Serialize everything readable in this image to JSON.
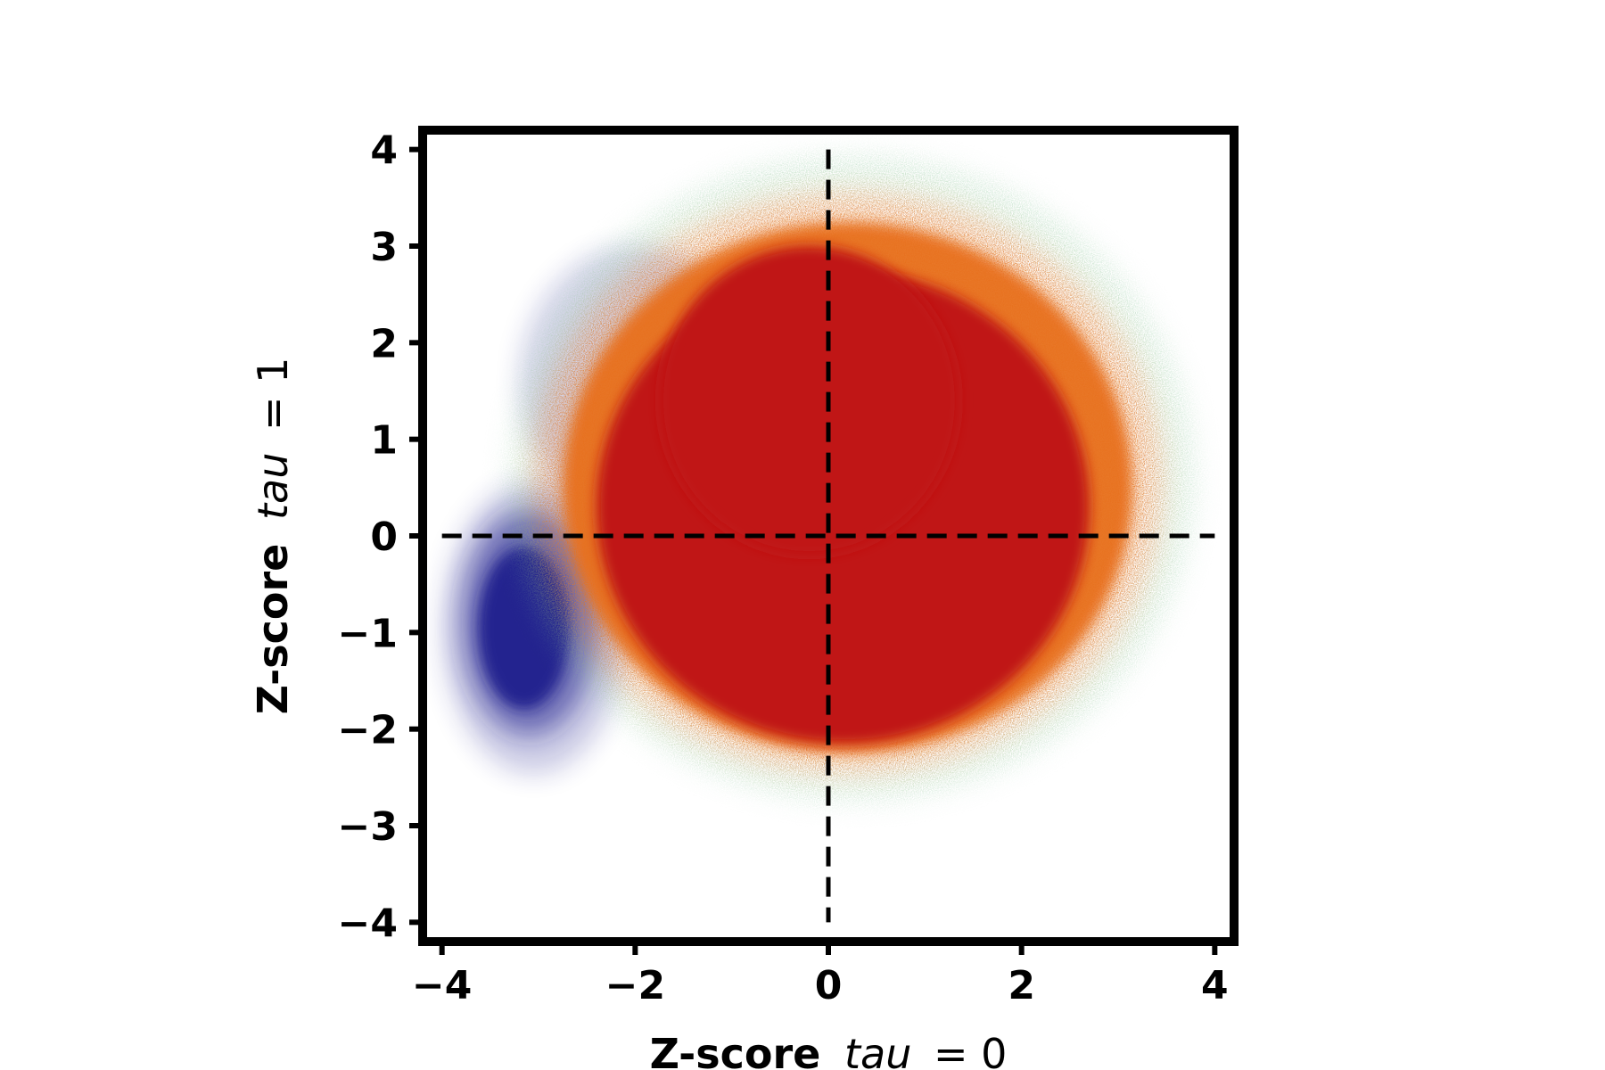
{
  "chart_data": {
    "type": "scatter",
    "title": "",
    "xlabel": {
      "prefix": "Z-score",
      "variable": "tau",
      "equals": "= 0"
    },
    "ylabel": {
      "prefix": "Z-score",
      "variable": "tau",
      "equals": "= 1"
    },
    "xlim": [
      -4.2,
      4.2
    ],
    "ylim": [
      -4.2,
      4.2
    ],
    "xticks": [
      -4,
      -2,
      0,
      2,
      4
    ],
    "xtick_labels": [
      "−4",
      "−2",
      "0",
      "2",
      "4"
    ],
    "yticks": [
      -4,
      -3,
      -2,
      -1,
      0,
      1,
      2,
      3,
      4
    ],
    "ytick_labels": [
      "−4",
      "−3",
      "−2",
      "−1",
      "0",
      "1",
      "2",
      "3",
      "4"
    ],
    "grid": false,
    "reference_lines": [
      {
        "orientation": "vertical",
        "x": 0,
        "y_range": [
          -4,
          4
        ],
        "style": "dashed"
      },
      {
        "orientation": "horizontal",
        "y": 0,
        "x_range": [
          -4,
          4
        ],
        "style": "dashed"
      }
    ],
    "clusters": [
      {
        "center": [
          0.0,
          0.0
        ],
        "spread": [
          1.55,
          1.45
        ],
        "color": "#c01515",
        "role": "dense core"
      },
      {
        "center": [
          -3.1,
          -0.9
        ],
        "spread": [
          0.45,
          0.8
        ],
        "color": "#1a1a8c",
        "role": "left cluster"
      }
    ],
    "colors": {
      "dense": "#c01515",
      "mid": "#e8701a",
      "halo": "#8bc79a",
      "outer": "#1a1a8c",
      "axes": "#000000"
    }
  }
}
